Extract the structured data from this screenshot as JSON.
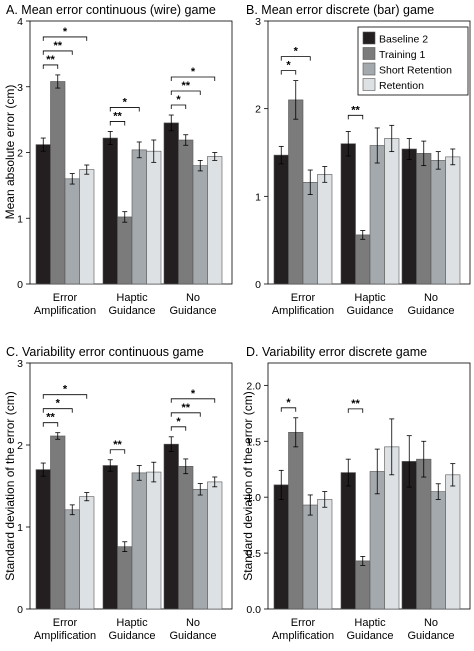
{
  "chart_data": [
    {
      "type": "bar",
      "title": "A.  Mean error continuous (wire) game",
      "ylabel": "Mean absolute error (cm)",
      "ylim": [
        0,
        4
      ],
      "yticks": [
        "0",
        "1",
        "2",
        "3",
        "4"
      ],
      "categories": [
        [
          "Error",
          "Amplification"
        ],
        [
          "Haptic",
          "Guidance"
        ],
        [
          "No",
          "Guidance"
        ]
      ],
      "series": [
        {
          "name": "Baseline 2",
          "color": "#231f20",
          "values": [
            2.12,
            2.22,
            2.45
          ],
          "err": [
            0.1,
            0.1,
            0.12
          ]
        },
        {
          "name": "Training 1",
          "color": "#7b7b7b",
          "values": [
            3.08,
            1.02,
            2.19
          ],
          "err": [
            0.1,
            0.08,
            0.08
          ]
        },
        {
          "name": "Short Retention",
          "color": "#a4a9ad",
          "values": [
            1.6,
            2.04,
            1.8
          ],
          "err": [
            0.08,
            0.12,
            0.08
          ]
        },
        {
          "name": "Retention",
          "color": "#dde1e4",
          "values": [
            1.74,
            2.02,
            1.94
          ],
          "err": [
            0.07,
            0.17,
            0.06
          ]
        }
      ],
      "legend": "none",
      "grid": false,
      "significance": [
        {
          "group": 0,
          "from": 0,
          "to": 1,
          "label": "**"
        },
        {
          "group": 0,
          "from": 0,
          "to": 2,
          "label": "**"
        },
        {
          "group": 0,
          "from": 0,
          "to": 3,
          "label": "*"
        },
        {
          "group": 1,
          "from": 0,
          "to": 1,
          "label": "**"
        },
        {
          "group": 1,
          "from": 0,
          "to": 2,
          "label": "*"
        },
        {
          "group": 2,
          "from": 0,
          "to": 1,
          "label": "*"
        },
        {
          "group": 2,
          "from": 0,
          "to": 2,
          "label": "**"
        },
        {
          "group": 2,
          "from": 0,
          "to": 3,
          "label": "*"
        }
      ]
    },
    {
      "type": "bar",
      "title": "B.  Mean error discrete (bar) game",
      "ylabel": "",
      "ylim": [
        0,
        3
      ],
      "yticks": [
        "0",
        "1",
        "2",
        "3"
      ],
      "categories": [
        [
          "Error",
          "Amplification"
        ],
        [
          "Haptic",
          "Guidance"
        ],
        [
          "No",
          "Guidance"
        ]
      ],
      "series": [
        {
          "name": "Baseline 2",
          "color": "#231f20",
          "values": [
            1.47,
            1.6,
            1.54
          ],
          "err": [
            0.1,
            0.14,
            0.12
          ]
        },
        {
          "name": "Training 1",
          "color": "#7b7b7b",
          "values": [
            2.1,
            0.56,
            1.49
          ],
          "err": [
            0.22,
            0.05,
            0.14
          ]
        },
        {
          "name": "Short Retention",
          "color": "#a4a9ad",
          "values": [
            1.16,
            1.58,
            1.41
          ],
          "err": [
            0.14,
            0.2,
            0.1
          ]
        },
        {
          "name": "Retention",
          "color": "#dde1e4",
          "values": [
            1.25,
            1.66,
            1.45
          ],
          "err": [
            0.09,
            0.15,
            0.09
          ]
        }
      ],
      "legend": "top-right",
      "grid": false,
      "significance": [
        {
          "group": 0,
          "from": 0,
          "to": 1,
          "label": "*"
        },
        {
          "group": 0,
          "from": 0,
          "to": 2,
          "label": "*"
        },
        {
          "group": 1,
          "from": 0,
          "to": 1,
          "label": "**"
        }
      ]
    },
    {
      "type": "bar",
      "title": "C.  Variability error continuous game",
      "ylabel": "Standard deviation of the error (cm)",
      "ylim": [
        0,
        3
      ],
      "yticks": [
        "0",
        "1",
        "2",
        "3"
      ],
      "categories": [
        [
          "Error",
          "Amplification"
        ],
        [
          "Haptic",
          "Guidance"
        ],
        [
          "No",
          "Guidance"
        ]
      ],
      "series": [
        {
          "name": "Baseline 2",
          "color": "#231f20",
          "values": [
            1.7,
            1.75,
            2.01
          ],
          "err": [
            0.08,
            0.07,
            0.09
          ]
        },
        {
          "name": "Training 1",
          "color": "#7b7b7b",
          "values": [
            2.11,
            0.76,
            1.74
          ],
          "err": [
            0.04,
            0.06,
            0.09
          ]
        },
        {
          "name": "Short Retention",
          "color": "#a4a9ad",
          "values": [
            1.21,
            1.66,
            1.46
          ],
          "err": [
            0.06,
            0.09,
            0.07
          ]
        },
        {
          "name": "Retention",
          "color": "#dde1e4",
          "values": [
            1.37,
            1.67,
            1.55
          ],
          "err": [
            0.05,
            0.12,
            0.06
          ]
        }
      ],
      "legend": "none",
      "grid": false,
      "significance": [
        {
          "group": 0,
          "from": 0,
          "to": 1,
          "label": "**"
        },
        {
          "group": 0,
          "from": 0,
          "to": 2,
          "label": "*"
        },
        {
          "group": 0,
          "from": 0,
          "to": 3,
          "label": "*"
        },
        {
          "group": 1,
          "from": 0,
          "to": 1,
          "label": "**"
        },
        {
          "group": 2,
          "from": 0,
          "to": 1,
          "label": "*"
        },
        {
          "group": 2,
          "from": 0,
          "to": 2,
          "label": "**"
        },
        {
          "group": 2,
          "from": 0,
          "to": 3,
          "label": "*"
        }
      ]
    },
    {
      "type": "bar",
      "title": "D.  Variability error discrete game",
      "ylabel": "Standard deviation of the error (cm)",
      "ylim": [
        0,
        2.2
      ],
      "yticks": [
        "0.0",
        "0.5",
        "1.0",
        "1.5",
        "2.0"
      ],
      "categories": [
        [
          "Error",
          "Amplification"
        ],
        [
          "Haptic",
          "Guidance"
        ],
        [
          "No",
          "Guidance"
        ]
      ],
      "series": [
        {
          "name": "Baseline 2",
          "color": "#231f20",
          "values": [
            1.11,
            1.22,
            1.32
          ],
          "err": [
            0.13,
            0.12,
            0.23
          ]
        },
        {
          "name": "Training 1",
          "color": "#7b7b7b",
          "values": [
            1.58,
            0.43,
            1.34
          ],
          "err": [
            0.13,
            0.04,
            0.16
          ]
        },
        {
          "name": "Short Retention",
          "color": "#a4a9ad",
          "values": [
            0.93,
            1.23,
            1.05
          ],
          "err": [
            0.09,
            0.2,
            0.07
          ]
        },
        {
          "name": "Retention",
          "color": "#dde1e4",
          "values": [
            0.98,
            1.45,
            1.2
          ],
          "err": [
            0.07,
            0.25,
            0.1
          ]
        }
      ],
      "legend": "none",
      "grid": false,
      "significance": [
        {
          "group": 0,
          "from": 0,
          "to": 1,
          "label": "*"
        },
        {
          "group": 1,
          "from": 0,
          "to": 1,
          "label": "**"
        }
      ]
    }
  ]
}
